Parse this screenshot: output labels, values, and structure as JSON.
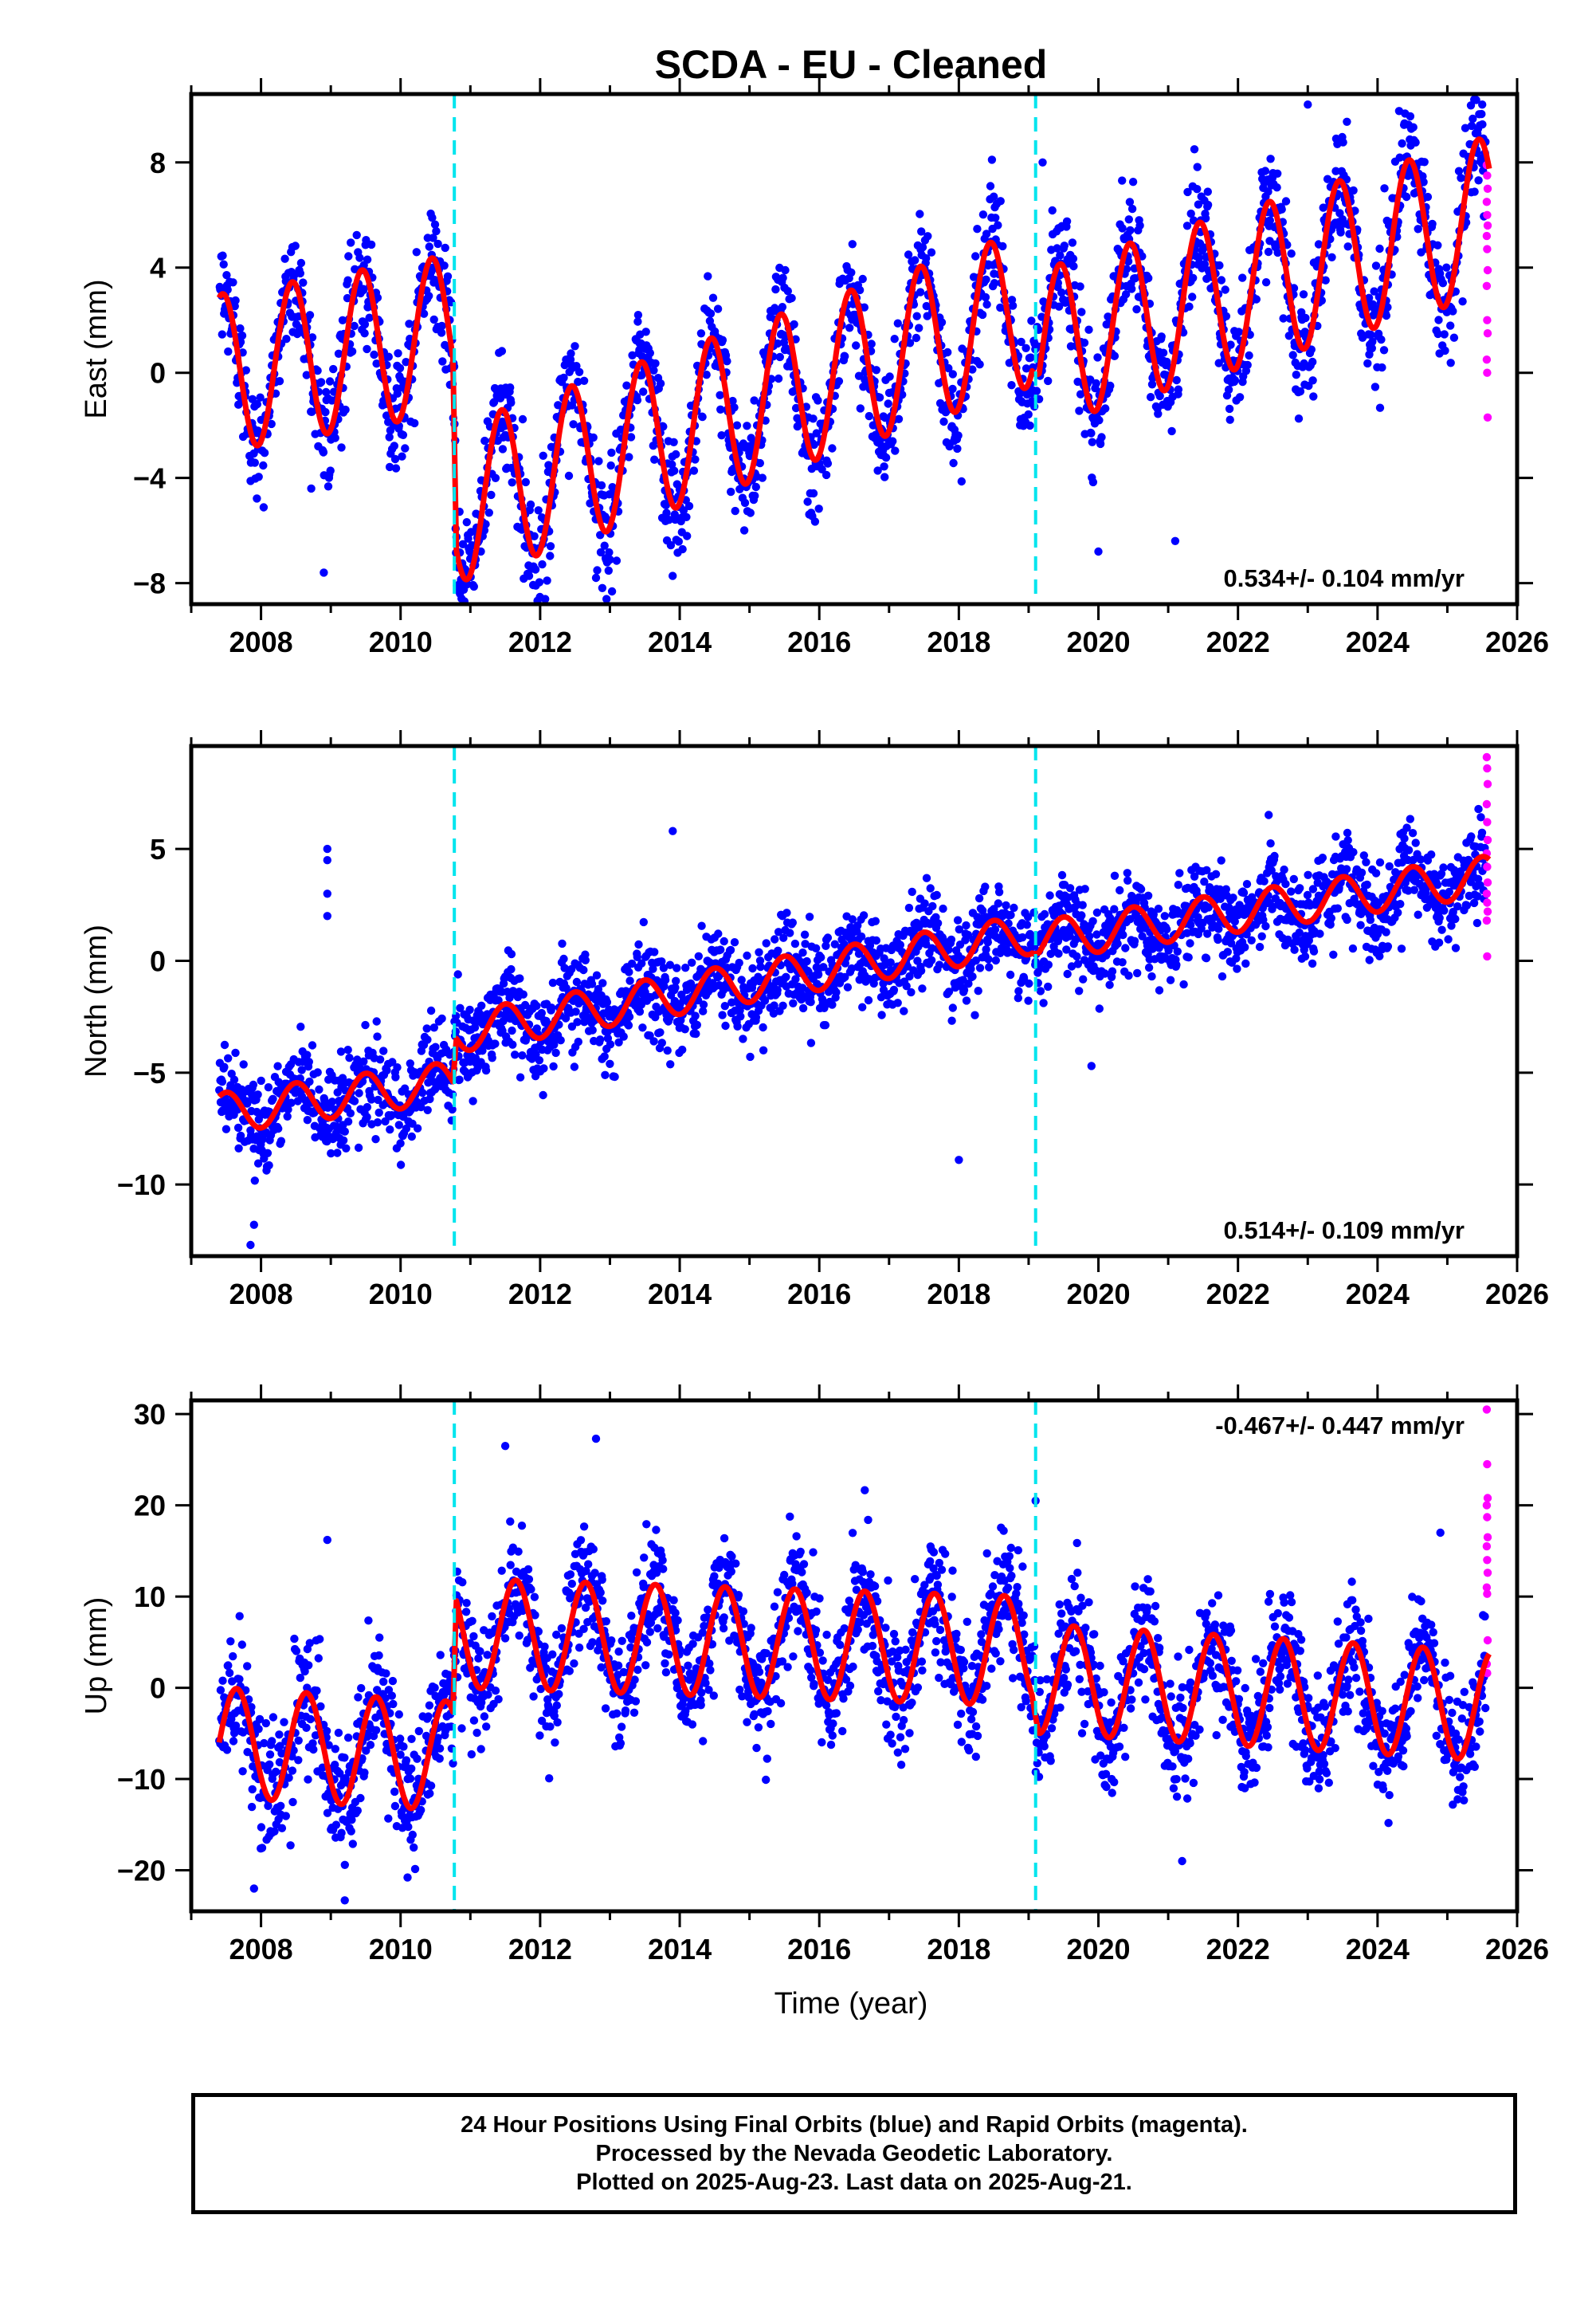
{
  "figure": {
    "title": "SCDA  - EU - Cleaned",
    "xlabel": "Time (year)",
    "x_ticks": [
      "2008",
      "2010",
      "2012",
      "2014",
      "2016",
      "2018",
      "2020",
      "2022",
      "2024",
      "2026"
    ],
    "footer": {
      "line1": "24 Hour Positions Using Final Orbits (blue) and Rapid Orbits (magenta).",
      "line2": "Processed by the Nevada Geodetic Laboratory.",
      "line3": "Plotted on 2025-Aug-23. Last data on 2025-Aug-21."
    },
    "colors": {
      "final_orbits": "#0000ff",
      "rapid_orbits": "#ff00ff",
      "model_fit": "#ff0000",
      "offsets": "#00e5ee"
    }
  },
  "chart_data": [
    {
      "type": "scatter",
      "component": "east",
      "ylabel": "East (mm)",
      "rate": "0.534+/- 0.104 mm/yr",
      "rate_position": "bottom-right",
      "xlim": [
        2007.0,
        2026.0
      ],
      "ylim": [
        -8.8,
        10.6
      ],
      "y_ticks": [
        -8,
        -4,
        0,
        4,
        8
      ],
      "offsets_year": [
        2010.77,
        2019.1
      ],
      "data_start": 2007.4,
      "data_end": 2025.6,
      "rapid_start": 2025.55,
      "fit_anchors": [
        [
          2007.45,
          0.0
        ],
        [
          2010.75,
          1.5
        ],
        [
          2010.8,
          -5.0
        ],
        [
          2019.05,
          2.5
        ],
        [
          2019.15,
          0.9
        ],
        [
          2025.6,
          6.0
        ]
      ],
      "seasonal_amp": 3.0,
      "seasonal_phase_peak": 0.45,
      "scatter_sigma": 1.1,
      "outliers": [
        [
          2023.0,
          10.2
        ],
        [
          2025.5,
          10.2
        ],
        [
          2018.5,
          6.7
        ],
        [
          2019.2,
          8.0
        ],
        [
          2012.8,
          -7.8
        ],
        [
          2008.9,
          -7.6
        ],
        [
          2020.0,
          -6.8
        ],
        [
          2021.1,
          -6.4
        ],
        [
          2010.85,
          -8.4
        ]
      ],
      "rapid_values": [
        7.9,
        7.5,
        7.0,
        6.5,
        6.0,
        5.6,
        5.2,
        4.7,
        3.9,
        3.3,
        2.0,
        1.5,
        0.5,
        0.0,
        -1.7
      ]
    },
    {
      "type": "scatter",
      "component": "north",
      "ylabel": "North (mm)",
      "rate": "0.514+/- 0.109 mm/yr",
      "rate_position": "bottom-right",
      "xlim": [
        2007.0,
        2026.0
      ],
      "ylim": [
        -13.2,
        9.6
      ],
      "y_ticks": [
        -10,
        -5,
        0,
        5
      ],
      "offsets_year": [
        2010.77,
        2019.1
      ],
      "data_start": 2007.4,
      "data_end": 2025.6,
      "rapid_start": 2025.55,
      "fit_anchors": [
        [
          2007.45,
          -6.8
        ],
        [
          2010.75,
          -5.4
        ],
        [
          2010.8,
          -3.2
        ],
        [
          2019.05,
          1.2
        ],
        [
          2019.15,
          0.9
        ],
        [
          2025.6,
          3.8
        ]
      ],
      "seasonal_amp": 0.9,
      "seasonal_phase_peak": 0.5,
      "scatter_sigma": 1.0,
      "outliers": [
        [
          2008.95,
          5.0
        ],
        [
          2008.95,
          4.5
        ],
        [
          2008.95,
          3.0
        ],
        [
          2008.95,
          2.0
        ],
        [
          2013.9,
          5.8
        ],
        [
          2018.0,
          -8.9
        ],
        [
          2007.85,
          -12.7
        ],
        [
          2007.9,
          -11.8
        ],
        [
          2019.9,
          -4.7
        ],
        [
          2015.2,
          -4.0
        ]
      ],
      "rapid_values": [
        9.1,
        8.6,
        7.9,
        7.0,
        6.2,
        5.4,
        4.8,
        4.2,
        3.5,
        3.0,
        2.6,
        2.2,
        1.8,
        0.2
      ]
    },
    {
      "type": "scatter",
      "component": "up",
      "ylabel": "Up (mm)",
      "rate": "-0.467+/- 0.447 mm/yr",
      "rate_position": "top-right",
      "xlim": [
        2007.0,
        2026.0
      ],
      "ylim": [
        -24.5,
        31.5
      ],
      "y_ticks": [
        -20,
        -10,
        0,
        10,
        20,
        30
      ],
      "offsets_year": [
        2010.77,
        2019.1
      ],
      "data_start": 2007.4,
      "data_end": 2025.6,
      "rapid_start": 2025.55,
      "fit_anchors": [
        [
          2007.45,
          -6.0
        ],
        [
          2010.75,
          -7.5
        ],
        [
          2010.8,
          6.0
        ],
        [
          2019.05,
          4.0
        ],
        [
          2019.15,
          1.0
        ],
        [
          2025.6,
          -2.0
        ]
      ],
      "seasonal_amp": 6.0,
      "seasonal_phase_peak": 0.65,
      "scatter_sigma": 3.3,
      "outliers": [
        [
          2008.95,
          16.2
        ],
        [
          2011.5,
          26.5
        ],
        [
          2012.8,
          27.3
        ],
        [
          2009.2,
          -23.3
        ],
        [
          2007.9,
          -22.0
        ],
        [
          2010.1,
          -20.8
        ],
        [
          2019.1,
          20.5
        ],
        [
          2016.7,
          18.4
        ],
        [
          2024.9,
          17.0
        ],
        [
          2021.2,
          -19.0
        ]
      ],
      "rapid_values": [
        30.5,
        24.5,
        20.8,
        20.0,
        18.7,
        16.5,
        15.5,
        14.0,
        12.6,
        11.0,
        10.3,
        5.2,
        2.6,
        1.6
      ]
    }
  ]
}
